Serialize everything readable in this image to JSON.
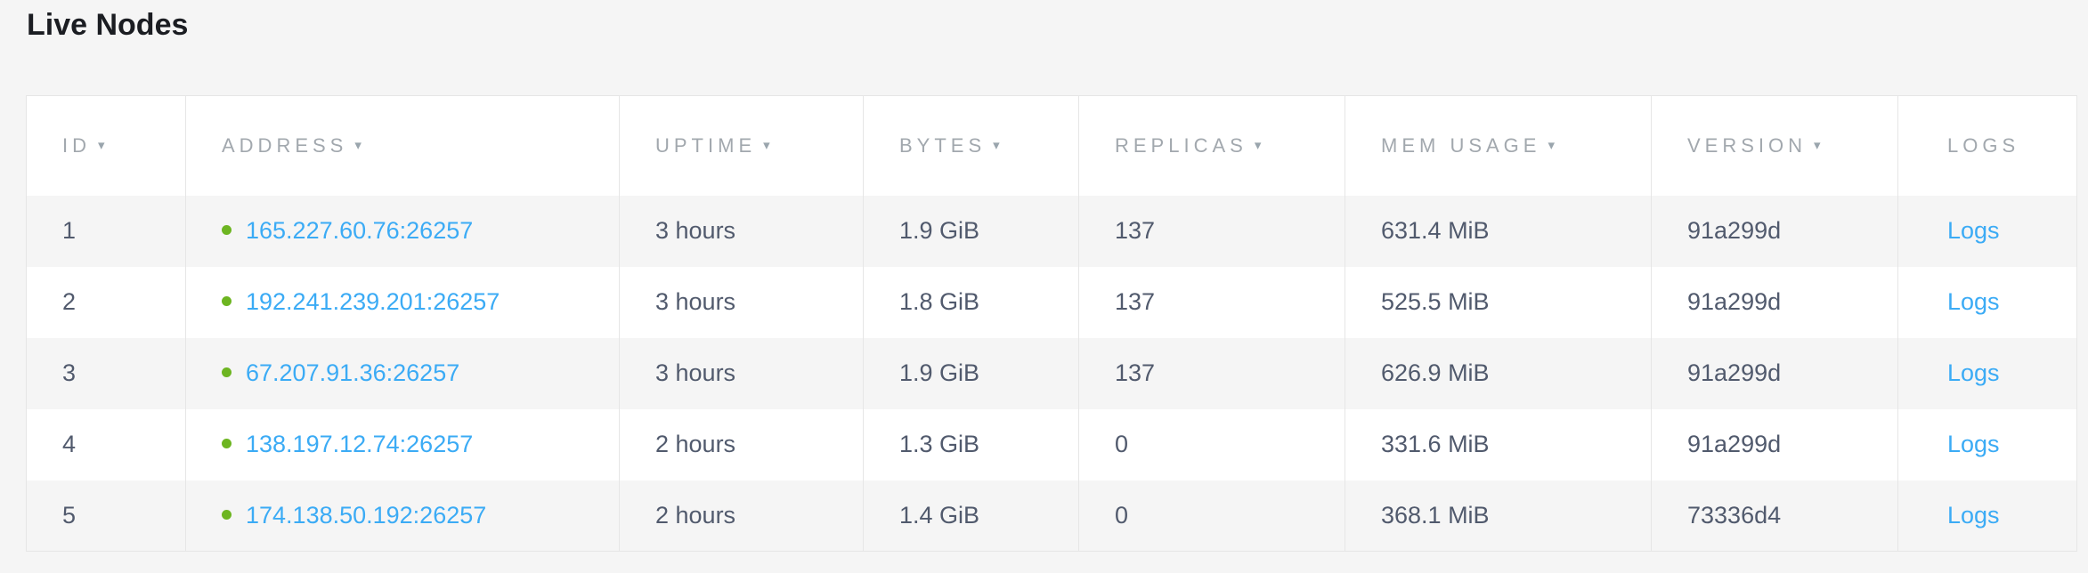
{
  "page": {
    "title": "Live Nodes"
  },
  "table": {
    "sort_indicator": "▾",
    "columns": [
      {
        "key": "id",
        "label": "ID",
        "sortable": true
      },
      {
        "key": "address",
        "label": "ADDRESS",
        "sortable": true
      },
      {
        "key": "uptime",
        "label": "UPTIME",
        "sortable": true
      },
      {
        "key": "bytes",
        "label": "BYTES",
        "sortable": true
      },
      {
        "key": "replicas",
        "label": "REPLICAS",
        "sortable": true
      },
      {
        "key": "mem_usage",
        "label": "MEM USAGE",
        "sortable": true
      },
      {
        "key": "version",
        "label": "VERSION",
        "sortable": true
      },
      {
        "key": "logs",
        "label": "LOGS",
        "sortable": false
      }
    ],
    "rows": [
      {
        "id": "1",
        "status": "live",
        "address": "165.227.60.76:26257",
        "uptime": "3 hours",
        "bytes": "1.9 GiB",
        "replicas": "137",
        "mem_usage": "631.4 MiB",
        "version": "91a299d",
        "logs": "Logs"
      },
      {
        "id": "2",
        "status": "live",
        "address": "192.241.239.201:26257",
        "uptime": "3 hours",
        "bytes": "1.8 GiB",
        "replicas": "137",
        "mem_usage": "525.5 MiB",
        "version": "91a299d",
        "logs": "Logs"
      },
      {
        "id": "3",
        "status": "live",
        "address": "67.207.91.36:26257",
        "uptime": "3 hours",
        "bytes": "1.9 GiB",
        "replicas": "137",
        "mem_usage": "626.9 MiB",
        "version": "91a299d",
        "logs": "Logs"
      },
      {
        "id": "4",
        "status": "live",
        "address": "138.197.12.74:26257",
        "uptime": "2 hours",
        "bytes": "1.3 GiB",
        "replicas": "0",
        "mem_usage": "331.6 MiB",
        "version": "91a299d",
        "logs": "Logs"
      },
      {
        "id": "5",
        "status": "live",
        "address": "174.138.50.192:26257",
        "uptime": "2 hours",
        "bytes": "1.4 GiB",
        "replicas": "0",
        "mem_usage": "368.1 MiB",
        "version": "73336d4",
        "logs": "Logs"
      }
    ],
    "colors": {
      "link": "#3babf5",
      "status_live": "#6db521",
      "cell_text": "#515a6d",
      "header_text": "#a2a8ae",
      "border": "#e6e6e6",
      "stripe": "#f5f5f5",
      "page_bg": "#f5f5f5"
    }
  }
}
